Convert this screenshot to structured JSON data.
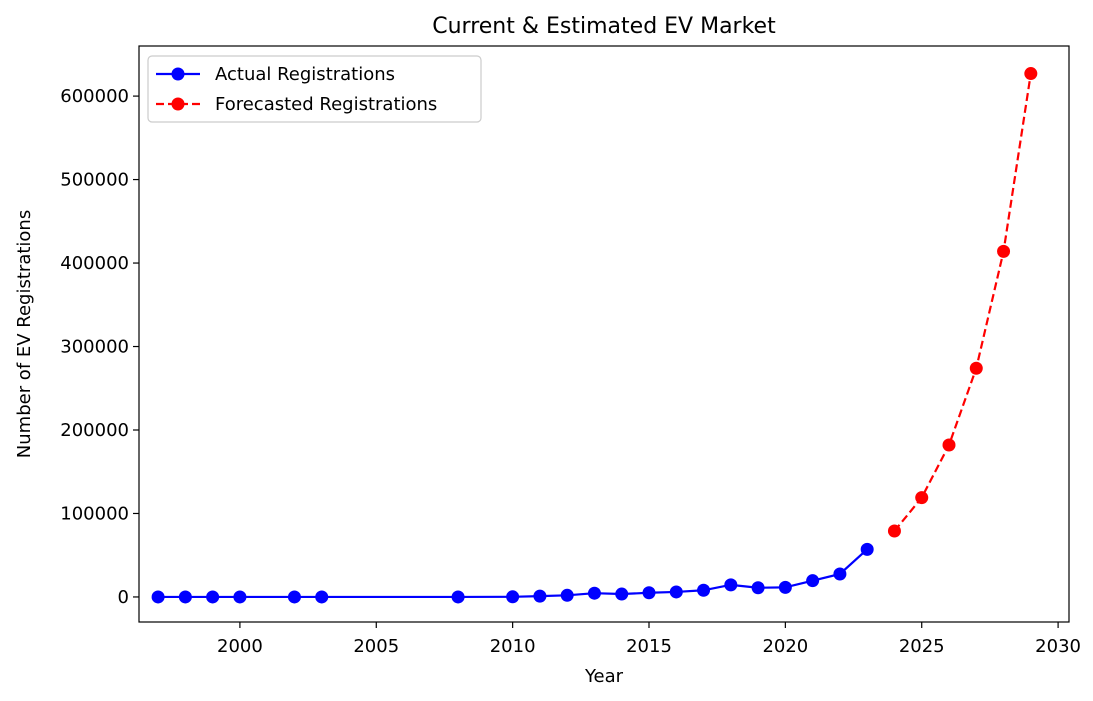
{
  "chart_data": {
    "type": "line",
    "title": "Current & Estimated EV Market",
    "xlabel": "Year",
    "ylabel": "Number of EV Registrations",
    "xlim": [
      1996.3,
      2030.4
    ],
    "ylim": [
      -30000,
      660000
    ],
    "xticks": [
      2000,
      2005,
      2010,
      2015,
      2020,
      2025,
      2030
    ],
    "yticks": [
      0,
      100000,
      200000,
      300000,
      400000,
      500000,
      600000
    ],
    "grid": false,
    "legend_position": "upper-left",
    "series": [
      {
        "name": "Actual Registrations",
        "color": "#0000ff",
        "linestyle": "solid",
        "marker": "circle",
        "x": [
          1997,
          1998,
          1999,
          2000,
          2002,
          2003,
          2008,
          2010,
          2011,
          2012,
          2013,
          2014,
          2015,
          2016,
          2017,
          2018,
          2019,
          2020,
          2021,
          2022,
          2023
        ],
        "y": [
          0,
          0,
          0,
          0,
          0,
          0,
          0,
          200,
          1000,
          2000,
          4500,
          3500,
          5000,
          6000,
          8000,
          14500,
          11000,
          11500,
          19500,
          27500,
          57000
        ]
      },
      {
        "name": "Forecasted Registrations",
        "color": "#ff0000",
        "linestyle": "dashed",
        "marker": "circle",
        "x": [
          2024,
          2025,
          2026,
          2027,
          2028,
          2029
        ],
        "y": [
          79000,
          119000,
          182000,
          274000,
          414000,
          627000
        ]
      }
    ]
  }
}
